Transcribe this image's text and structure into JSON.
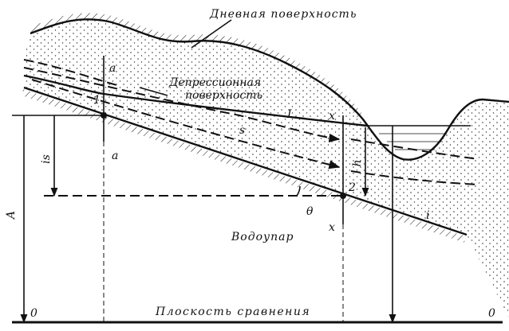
{
  "labels": {
    "surface": "Дневная поверхность",
    "depression_1": "Депрессионная",
    "depression_2": "поверхность",
    "a_top": "a",
    "a_bottom": "a",
    "point_1": "1",
    "curve_I": "I",
    "x_top": "x",
    "x_bottom": "x",
    "s": "s",
    "is": "is",
    "A": "A",
    "h": "h",
    "point_2": "2",
    "theta": "θ",
    "i": "i",
    "aquiclude": "Водоупар",
    "datum": "Плоскость сравнения",
    "zero_left": "0",
    "zero_right": "0"
  }
}
